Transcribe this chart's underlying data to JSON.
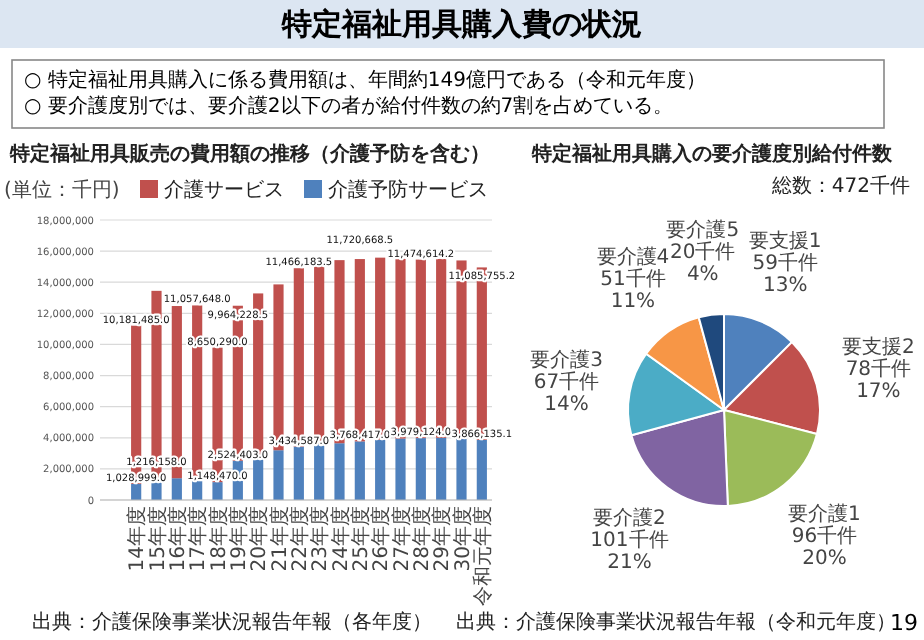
{
  "chart_data": [
    {
      "type": "other",
      "title": "特定福祉用具購入費の状況",
      "annotations": [
        "○ 特定福祉用具購入に係る費用額は、年間約149億円である（令和元年度）",
        "○ 要介護度別では、要介護2以下の者が給付件数の約7割を占めている。",
        "19"
      ]
    },
    {
      "type": "bar",
      "stacked": true,
      "title": "特定福祉用具販売の費用額の推移（介護予防を含む）",
      "ylabel": "(単位：千円)",
      "categories": [
        "14年度",
        "15年度",
        "16年度",
        "17年度",
        "18年度",
        "19年度",
        "20年度",
        "21年度",
        "22年度",
        "23年度",
        "24年度",
        "25年度",
        "26年度",
        "27年度",
        "28年度",
        "29年度",
        "30年度",
        "令和元年度"
      ],
      "series": [
        {
          "name": "介護予防サービス",
          "color": "#4f81bd",
          "values": [
            1028999.0,
            1216158.0,
            1400000,
            1450000,
            1148470.0,
            2524403.0,
            2900000,
            3200000,
            3434587.0,
            3600000,
            3650000,
            3768417.0,
            3880000,
            3950000,
            3979124.0,
            4000000,
            3950000,
            3866135.1
          ],
          "value_labels": [
            "1,028,999.0",
            "1,216,158.0",
            null,
            null,
            "1,148,470.0",
            "2,524,403.0",
            null,
            null,
            "3,434,587.0",
            null,
            null,
            "3,768,417.0",
            null,
            null,
            "3,979,124.0",
            null,
            null,
            "3,866,135.1"
          ]
        },
        {
          "name": "介護サービス",
          "color": "#c0504d",
          "values": [
            10181485.0,
            12230000,
            11070000,
            11057648.0,
            8650290.0,
            9964228.5,
            10380000,
            10660000,
            11466183.5,
            11740000,
            11770000,
            11720668.5,
            11700000,
            11550000,
            11474614.2,
            11500000,
            11450000,
            11085755.2
          ],
          "value_labels": [
            "10,181,485.0",
            null,
            null,
            "11,057,648.0",
            "8,650,290.0",
            "9,964,228.5",
            null,
            null,
            "11,466,183.5",
            null,
            null,
            "11,720,668.5",
            null,
            null,
            "11,474,614.2",
            null,
            null,
            "11,085,755.2"
          ]
        }
      ],
      "ylim": [
        0,
        18000000
      ],
      "yticks": [
        0,
        {
          "value": 2000000,
          "label": "2,000,000"
        },
        {
          "value": 4000000,
          "label": "4,000,000"
        },
        {
          "value": 6000000,
          "label": "6,000,000"
        },
        {
          "value": 8000000,
          "label": "8,000,000"
        },
        {
          "value": 10000000,
          "label": "10,000,000"
        },
        {
          "value": 12000000,
          "label": "12,000,000"
        },
        {
          "value": 14000000,
          "label": "14,000,000"
        },
        {
          "value": 16000000,
          "label": "16,000,000"
        },
        {
          "value": 18000000,
          "label": "18,000,000"
        }
      ],
      "grid": "y",
      "legend": "top",
      "annotations": [
        "出典：介護保険事業状況報告年報（各年度）"
      ]
    },
    {
      "type": "pie",
      "title": "特定福祉用具購入の要介護度別給付件数",
      "categories": [
        "要支援1",
        "要支援2",
        "要介護1",
        "要介護2",
        "要介護3",
        "要介護4",
        "要介護5"
      ],
      "values": [
        59,
        78,
        96,
        101,
        67,
        51,
        20
      ],
      "value_labels": [
        "59千件\n13%",
        "78千件\n17%",
        "96千件\n20%",
        "101千件\n21%",
        "67千件\n14%",
        "51千件\n11%",
        "20千件\n4%"
      ],
      "colors": [
        "#4f81bd",
        "#c0504d",
        "#9bbb59",
        "#8064a2",
        "#4bacc6",
        "#f79646",
        "#1f497d"
      ],
      "annotations": [
        "総数：472千件",
        "出典：介護保険事業状況報告年報（令和元年度）"
      ]
    }
  ]
}
